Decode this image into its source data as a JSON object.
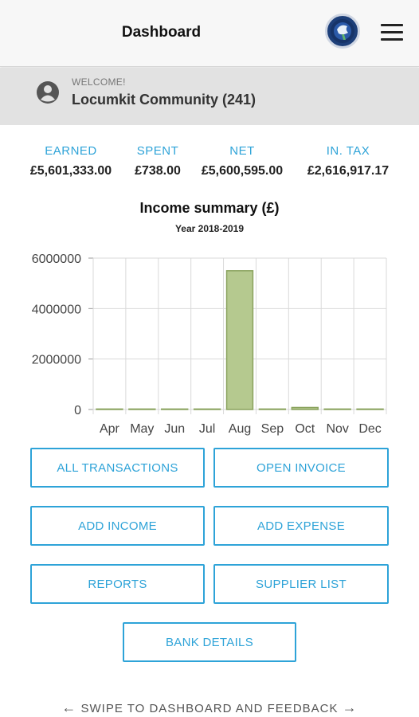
{
  "header": {
    "title": "Dashboard",
    "logo_icon": "locumkit-logo",
    "menu_icon": "hamburger-menu-icon"
  },
  "welcome": {
    "label": "WELCOME!",
    "name": "Locumkit Community (241)",
    "icon": "account-icon"
  },
  "stats": [
    {
      "label": "EARNED",
      "value": "£5,601,333.00"
    },
    {
      "label": "SPENT",
      "value": "£738.00"
    },
    {
      "label": "NET",
      "value": "£5,600,595.00"
    },
    {
      "label": "IN. TAX",
      "value": "£2,616,917.17"
    }
  ],
  "chart_data": {
    "type": "bar",
    "title": "Income summary (£)",
    "subtitle": "Year 2018-2019",
    "categories": [
      "Apr",
      "May",
      "Jun",
      "Jul",
      "Aug",
      "Sep",
      "Oct",
      "Nov",
      "Dec"
    ],
    "values": [
      0,
      0,
      0,
      0,
      5500000,
      0,
      80000,
      0,
      0
    ],
    "ylim": [
      0,
      6000000
    ],
    "yticks": [
      "0",
      "2000000",
      "4000000",
      "6000000"
    ],
    "grid": true,
    "colors": {
      "bar_fill": "#b5c98f",
      "bar_stroke": "#8aa35e",
      "grid": "#d9d9d9"
    }
  },
  "buttons": {
    "all_transactions": "ALL TRANSACTIONS",
    "open_invoice": "OPEN INVOICE",
    "add_income": "ADD INCOME",
    "add_expense": "ADD EXPENSE",
    "reports": "REPORTS",
    "supplier_list": "SUPPLIER LIST",
    "bank_details": "BANK DETAILS"
  },
  "footer": {
    "swipe_text": "SWIPE TO DASHBOARD AND FEEDBACK",
    "left_icon": "arrow-left-icon",
    "right_icon": "arrow-right-icon"
  },
  "colors": {
    "accent": "#2ea3d8"
  }
}
